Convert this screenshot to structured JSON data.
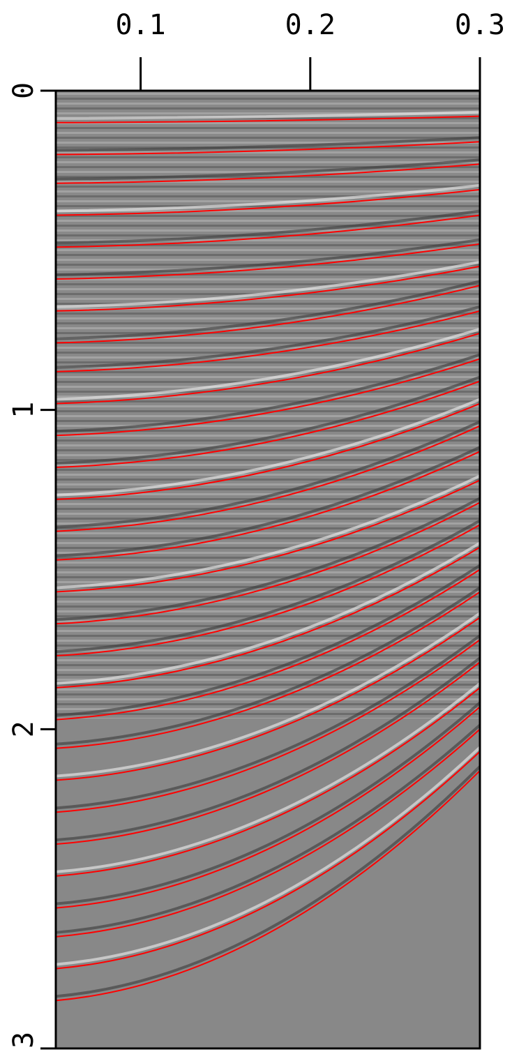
{
  "chart_data": {
    "type": "moveout",
    "x": [
      0.05,
      0.3
    ],
    "xlim": [
      0.05,
      0.3
    ],
    "xticks": [
      0.1,
      0.2,
      0.3
    ],
    "ylim": [
      0,
      3
    ],
    "yticks": [
      0,
      1,
      2,
      3
    ],
    "curve_color": "#ff0000",
    "curves": [
      [
        0.1,
        0.08
      ],
      [
        0.2,
        0.16
      ],
      [
        0.29,
        0.23
      ],
      [
        0.39,
        0.31
      ],
      [
        0.49,
        0.39
      ],
      [
        0.59,
        0.48
      ],
      [
        0.69,
        0.55
      ],
      [
        0.79,
        0.61
      ],
      [
        0.88,
        0.69
      ],
      [
        0.98,
        0.76
      ],
      [
        1.08,
        0.84
      ],
      [
        1.18,
        0.91
      ],
      [
        1.28,
        0.98
      ],
      [
        1.38,
        1.05
      ],
      [
        1.47,
        1.13
      ],
      [
        1.57,
        1.22
      ],
      [
        1.67,
        1.29
      ],
      [
        1.77,
        1.36
      ],
      [
        1.87,
        1.43
      ],
      [
        1.97,
        1.5
      ],
      [
        2.06,
        1.57
      ],
      [
        2.16,
        1.65
      ],
      [
        2.26,
        1.72
      ],
      [
        2.36,
        1.79
      ],
      [
        2.46,
        1.87
      ],
      [
        2.56,
        1.93
      ],
      [
        2.65,
        2.0
      ],
      [
        2.75,
        2.07
      ],
      [
        2.85,
        2.13
      ]
    ]
  }
}
